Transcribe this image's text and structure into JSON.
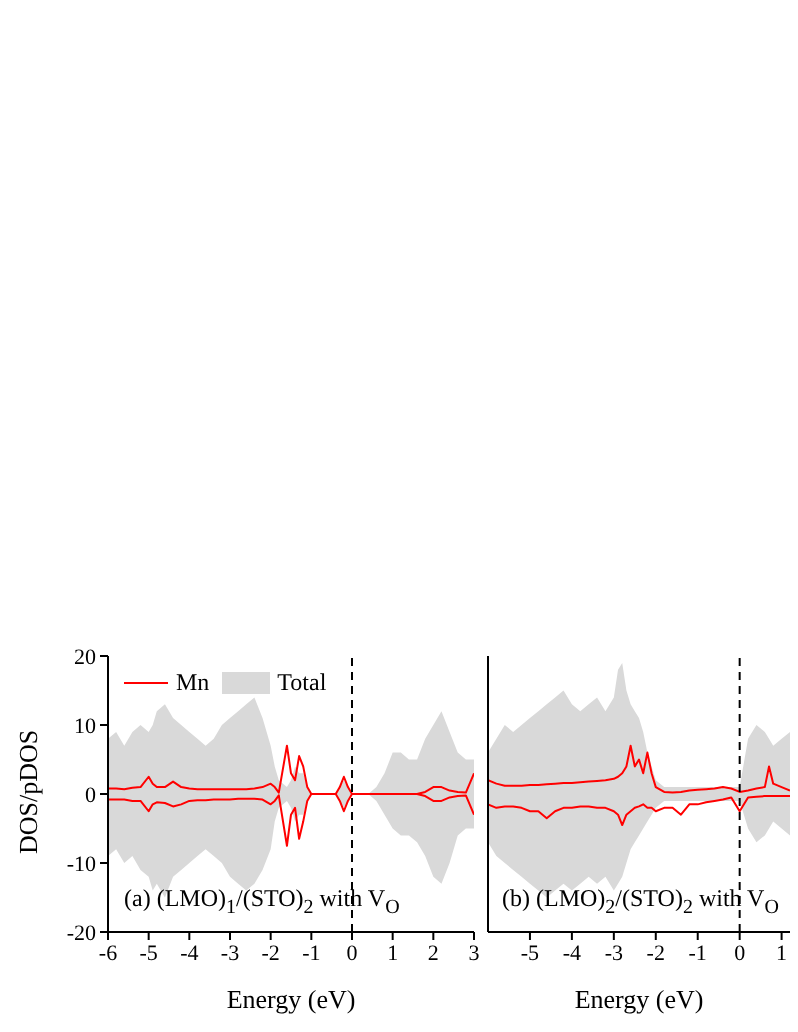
{
  "chart_data": [
    {
      "type": "area",
      "xlabel": "Energy (eV)",
      "ylabel": "DOS/pDOS",
      "xlim": [
        -6,
        3
      ],
      "xticks": [
        -6,
        -5,
        -4,
        -3,
        -2,
        -1,
        0,
        1,
        2,
        3
      ],
      "ylim": [
        -20,
        20
      ],
      "yticks": [
        -20,
        -10,
        0,
        10,
        20
      ],
      "legend": "top left",
      "annotations": [
        "(a) (LMO)$_{1}$/(STO)$_{2}$ with V$_{O}$"
      ],
      "ref_lines": [
        {
          "axis": "x",
          "value": 0,
          "line_style": "dashed",
          "color": "#000000"
        }
      ],
      "x": [
        -6,
        -5.8,
        -5.6,
        -5.4,
        -5.2,
        -5,
        -4.9,
        -4.8,
        -4.6,
        -4.4,
        -4.2,
        -4,
        -3.8,
        -3.6,
        -3.4,
        -3.2,
        -3,
        -2.8,
        -2.6,
        -2.4,
        -2.2,
        -2,
        -1.9,
        -1.8,
        -1.6,
        -1.5,
        -1.4,
        -1.3,
        -1.2,
        -1.1,
        -1,
        -0.8,
        -0.6,
        -0.4,
        -0.3,
        -0.2,
        -0.1,
        0,
        0.2,
        0.4,
        0.6,
        0.8,
        1,
        1.2,
        1.4,
        1.6,
        1.8,
        2,
        2.2,
        2.4,
        2.6,
        2.8,
        3
      ],
      "series": [
        {
          "name": "Total",
          "color": "#d9d9d9",
          "values": [
            8,
            9,
            7,
            9,
            10,
            9,
            10,
            12,
            13,
            11,
            10,
            9,
            8,
            7,
            8,
            10,
            11,
            12,
            13,
            14,
            11,
            7,
            4,
            2,
            1,
            2,
            4,
            3,
            3,
            1,
            0,
            0,
            0,
            0,
            1,
            2,
            1,
            0,
            0,
            0,
            1,
            3,
            6,
            6,
            5,
            5,
            8,
            10,
            12,
            9,
            6,
            5,
            5
          ]
        },
        {
          "color": "#d9d9d9",
          "values": [
            -9,
            -8,
            -10,
            -9,
            -11,
            -12,
            -14,
            -13,
            -15,
            -12,
            -11,
            -10,
            -9,
            -8,
            -9,
            -10,
            -12,
            -13,
            -14,
            -13,
            -11,
            -8,
            -4,
            -2,
            -1,
            -2,
            -4,
            -3,
            -3,
            -1,
            0,
            0,
            0,
            0,
            -1,
            -2,
            -1,
            0,
            0,
            0,
            -1,
            -3,
            -5,
            -6,
            -6,
            -7,
            -9,
            -12,
            -13,
            -10,
            -6,
            -5,
            -5
          ]
        },
        {
          "type": "line",
          "name": "Mn",
          "color": "#ff0000",
          "values": [
            0.8,
            0.8,
            0.7,
            0.9,
            1,
            2.5,
            1.5,
            1,
            1,
            1.8,
            1,
            0.8,
            0.7,
            0.7,
            0.7,
            0.7,
            0.7,
            0.7,
            0.7,
            0.8,
            1,
            1.5,
            1,
            0.2,
            7,
            3,
            2,
            5.5,
            4,
            1,
            0,
            0,
            0,
            0,
            1,
            2.5,
            1,
            0,
            0,
            0,
            0,
            0,
            0,
            0,
            0,
            0,
            0.3,
            1,
            1,
            0.5,
            0.3,
            0.2,
            3
          ]
        },
        {
          "type": "line",
          "color": "#ff0000",
          "values": [
            -0.8,
            -0.8,
            -0.8,
            -1,
            -1,
            -2.5,
            -1.5,
            -1.2,
            -1.3,
            -1.8,
            -1.5,
            -1,
            -0.9,
            -0.9,
            -0.8,
            -0.8,
            -0.8,
            -0.7,
            -0.7,
            -0.7,
            -0.8,
            -1.5,
            -1,
            -0.2,
            -7.5,
            -3,
            -2,
            -6.5,
            -4,
            -1,
            0,
            0,
            0,
            0,
            -1,
            -2.5,
            -1,
            0,
            0,
            0,
            0,
            0,
            0,
            0,
            0,
            0,
            -0.3,
            -1,
            -1,
            -0.5,
            -0.3,
            -0.2,
            -3
          ]
        }
      ]
    },
    {
      "type": "area",
      "xlabel": "Energy (eV)",
      "xlim": [
        -6,
        1.2
      ],
      "xticks": [
        -5,
        -4,
        -3,
        -2,
        -1,
        0,
        1
      ],
      "ylim": [
        -20,
        20
      ],
      "yticks": [
        -20,
        -10,
        0,
        10,
        20
      ],
      "tick_labels": "x",
      "annotations": [
        "(b) (LMO)$_{2}$/(STO)$_{2}$ with V$_{O}$"
      ],
      "ref_lines": [
        {
          "axis": "x",
          "value": 0,
          "line_style": "dashed",
          "color": "#000000"
        }
      ],
      "x": [
        -6,
        -5.8,
        -5.6,
        -5.4,
        -5.2,
        -5,
        -4.8,
        -4.6,
        -4.4,
        -4.2,
        -4,
        -3.8,
        -3.6,
        -3.4,
        -3.2,
        -3,
        -2.9,
        -2.8,
        -2.7,
        -2.6,
        -2.5,
        -2.4,
        -2.3,
        -2.2,
        -2.1,
        -2,
        -1.8,
        -1.6,
        -1.4,
        -1.2,
        -1,
        -0.8,
        -0.6,
        -0.4,
        -0.2,
        0,
        0.2,
        0.4,
        0.6,
        0.7,
        0.8,
        1,
        1.2
      ],
      "series": [
        {
          "color": "#d9d9d9",
          "values": [
            6,
            8,
            10,
            9,
            10,
            11,
            12,
            13,
            14,
            15,
            13,
            12,
            13,
            14,
            12,
            14,
            18,
            19,
            15,
            13,
            12,
            11,
            9,
            6,
            4,
            2,
            1,
            1,
            1,
            1,
            1,
            1,
            1,
            1,
            1,
            1,
            8,
            10,
            9,
            8,
            7,
            8,
            9
          ]
        },
        {
          "color": "#d9d9d9",
          "values": [
            -7,
            -9,
            -10,
            -11,
            -12,
            -13,
            -14,
            -15,
            -14,
            -13,
            -14,
            -13,
            -12,
            -13,
            -12,
            -14,
            -13,
            -12,
            -10,
            -8,
            -7,
            -6,
            -5,
            -4,
            -3,
            -2,
            -1,
            -1,
            -1,
            -1,
            -1,
            -1,
            -1,
            -1,
            -1,
            -1,
            -5,
            -7,
            -6,
            -5,
            -4,
            -5,
            -6
          ]
        },
        {
          "type": "line",
          "color": "#ff0000",
          "values": [
            2,
            1.5,
            1.2,
            1.2,
            1.2,
            1.3,
            1.3,
            1.4,
            1.5,
            1.6,
            1.6,
            1.7,
            1.8,
            1.9,
            2,
            2.2,
            2.5,
            3,
            4,
            7,
            4,
            5,
            3,
            6,
            3,
            1,
            0.3,
            0.2,
            0.3,
            0.5,
            0.6,
            0.7,
            0.8,
            1,
            0.8,
            0.3,
            0.5,
            0.8,
            1,
            4,
            1.5,
            1,
            0.5
          ]
        },
        {
          "type": "line",
          "color": "#ff0000",
          "values": [
            -1.5,
            -2,
            -1.8,
            -1.8,
            -2,
            -2.5,
            -2.5,
            -3.5,
            -2.5,
            -2,
            -2,
            -1.8,
            -1.8,
            -2,
            -2,
            -2.5,
            -3,
            -4.5,
            -3,
            -2.5,
            -2,
            -1.8,
            -1.5,
            -2,
            -2,
            -2.5,
            -2,
            -2,
            -3,
            -1.5,
            -1.5,
            -1.2,
            -1,
            -0.8,
            -0.5,
            -2.5,
            -0.5,
            -0.4,
            -0.3,
            -0.3,
            -0.3,
            -0.3,
            -0.3
          ]
        }
      ]
    }
  ]
}
